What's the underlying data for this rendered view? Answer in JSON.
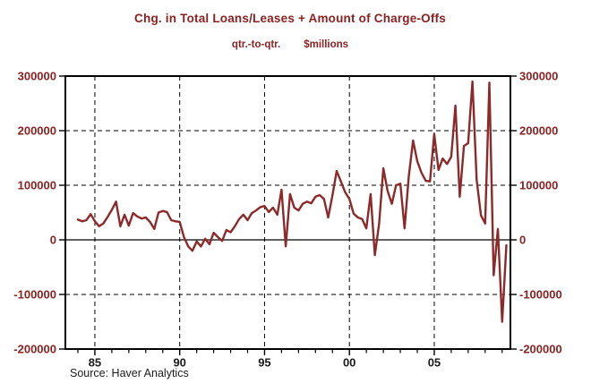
{
  "header": {
    "title": "Chg. in Total Loans/Leases + Amount of Charge-Offs",
    "subtitle_frequency": "qtr.-to-qtr.",
    "subtitle_units": "$millions"
  },
  "footer": {
    "source": "Source: Haver Analytics"
  },
  "colors": {
    "accent_text": "#8b2121",
    "line": "#8e2929",
    "axis": "#000000",
    "x_label": "#1a1a1a"
  },
  "chart_data": {
    "type": "line",
    "title": "Chg. in Total Loans/Leases + Amount of Charge-Offs",
    "subtitle": "qtr.-to-qtr.  $millions",
    "xlabel": "",
    "ylabel": "$millions",
    "ylim": [
      -200000,
      300000
    ],
    "y_ticks": [
      300000,
      200000,
      100000,
      0,
      -100000,
      -200000
    ],
    "y_gridlines_dashed": [
      200000,
      100000,
      -100000
    ],
    "zero_line_solid": true,
    "x_major_ticks": [
      {
        "year": 1985,
        "label": "85"
      },
      {
        "year": 1990,
        "label": "90"
      },
      {
        "year": 1995,
        "label": "95"
      },
      {
        "year": 2000,
        "label": "00"
      },
      {
        "year": 2005,
        "label": "05"
      }
    ],
    "x_minor_ticks_every_year": true,
    "x_minor_tick_year_range": [
      1984,
      2009
    ],
    "vertical_gridlines_dashed_at_major_ticks": true,
    "legend": "none",
    "frequency": "quarterly",
    "series": [
      {
        "name": "Chg. in Total Loans/Leases + Amount of Charge-Offs, qtr.-to-qtr., $millions",
        "x_start": 1984.0,
        "x_step": 0.25,
        "x_end": 2009.25,
        "values": [
          37000,
          34000,
          36000,
          47000,
          34000,
          25000,
          30000,
          42000,
          55000,
          70000,
          25000,
          46000,
          26000,
          49000,
          43000,
          39000,
          41000,
          33000,
          20000,
          50000,
          53000,
          51000,
          36000,
          34000,
          33000,
          5000,
          -12000,
          -20000,
          -3000,
          -12000,
          2000,
          -8000,
          13000,
          5000,
          -2000,
          18000,
          14000,
          25000,
          38000,
          46000,
          36000,
          49000,
          54000,
          60000,
          62000,
          51000,
          59000,
          46000,
          92000,
          -12000,
          84000,
          59000,
          54000,
          66000,
          70000,
          67000,
          79000,
          82000,
          75000,
          41000,
          82000,
          126000,
          107000,
          87000,
          75000,
          48000,
          41000,
          38000,
          21000,
          84000,
          -28000,
          30000,
          131000,
          90000,
          66000,
          100000,
          103000,
          21000,
          116000,
          182000,
          144000,
          123000,
          108000,
          107000,
          194000,
          128000,
          149000,
          139000,
          152000,
          246000,
          79000,
          172000,
          177000,
          290000,
          110000,
          45000,
          30000,
          288000,
          -65000,
          20000,
          -150000,
          -10000
        ]
      }
    ]
  }
}
